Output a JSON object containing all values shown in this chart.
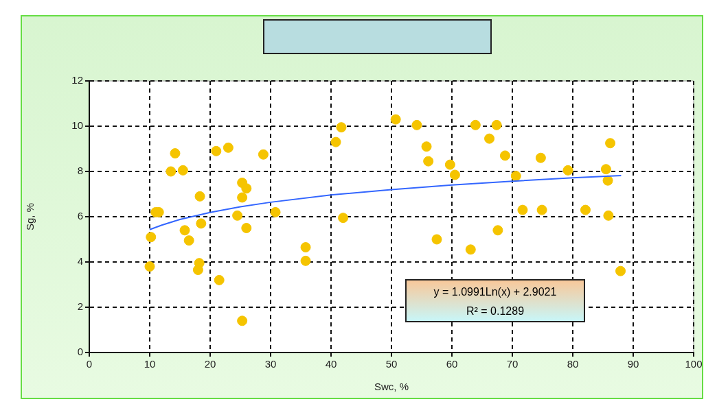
{
  "chart_data": {
    "type": "scatter",
    "xlabel": "Swc, %",
    "ylabel": "Sg, %",
    "xlim": [
      0,
      100
    ],
    "xticks": [
      0,
      10,
      20,
      30,
      40,
      50,
      60,
      70,
      80,
      90,
      100
    ],
    "ylim": [
      0,
      12
    ],
    "yticks": [
      0,
      2,
      4,
      6,
      8,
      10,
      12
    ],
    "grid": true,
    "legend": false,
    "marker": "circle",
    "annotations": [
      "y = 1.0991Ln(x) + 2.9021",
      "R² = 0.1289"
    ],
    "series": [
      {
        "color": "#f5c400",
        "x": [
          10,
          10.2,
          11,
          11.5,
          13.5,
          14.2,
          15.5,
          15.8,
          16.5,
          18,
          18.2,
          18.3,
          18.5,
          21,
          21.5,
          23,
          24.5,
          25.3,
          25.3,
          25.3,
          26,
          26,
          28.8,
          30.8,
          35.8,
          35.8,
          40.8,
          41.7,
          42,
          50.7,
          54.2,
          55.8,
          56.1,
          57.5,
          59.7,
          60.5,
          63.1,
          63.9,
          66.2,
          67.4,
          67.6,
          68.8,
          70.6,
          71.7,
          74.7,
          74.9,
          79.2,
          82.1,
          85.5,
          85.8,
          85.9,
          86.2,
          87.9
        ],
        "values": [
          3.8,
          5.1,
          6.2,
          6.2,
          8.0,
          8.8,
          8.05,
          5.4,
          4.95,
          3.65,
          3.95,
          6.9,
          5.7,
          8.9,
          3.2,
          9.05,
          6.05,
          1.4,
          6.85,
          7.5,
          7.25,
          5.5,
          8.75,
          6.2,
          4.65,
          4.05,
          9.3,
          9.95,
          5.95,
          10.3,
          10.05,
          9.1,
          8.45,
          5.0,
          8.3,
          7.85,
          4.55,
          10.05,
          9.45,
          10.05,
          5.4,
          8.7,
          7.8,
          6.3,
          8.6,
          6.3,
          8.05,
          6.3,
          8.1,
          7.6,
          6.05,
          9.25,
          3.6
        ]
      },
      {
        "type": "line",
        "marker": "none",
        "color": "#3366ff",
        "x": [
          10,
          12,
          15,
          20,
          25,
          30,
          40,
          50,
          60,
          70,
          80,
          88
        ],
        "values": [
          5.43,
          5.63,
          5.88,
          6.19,
          6.44,
          6.64,
          6.96,
          7.2,
          7.4,
          7.57,
          7.72,
          7.82
        ]
      }
    ]
  }
}
